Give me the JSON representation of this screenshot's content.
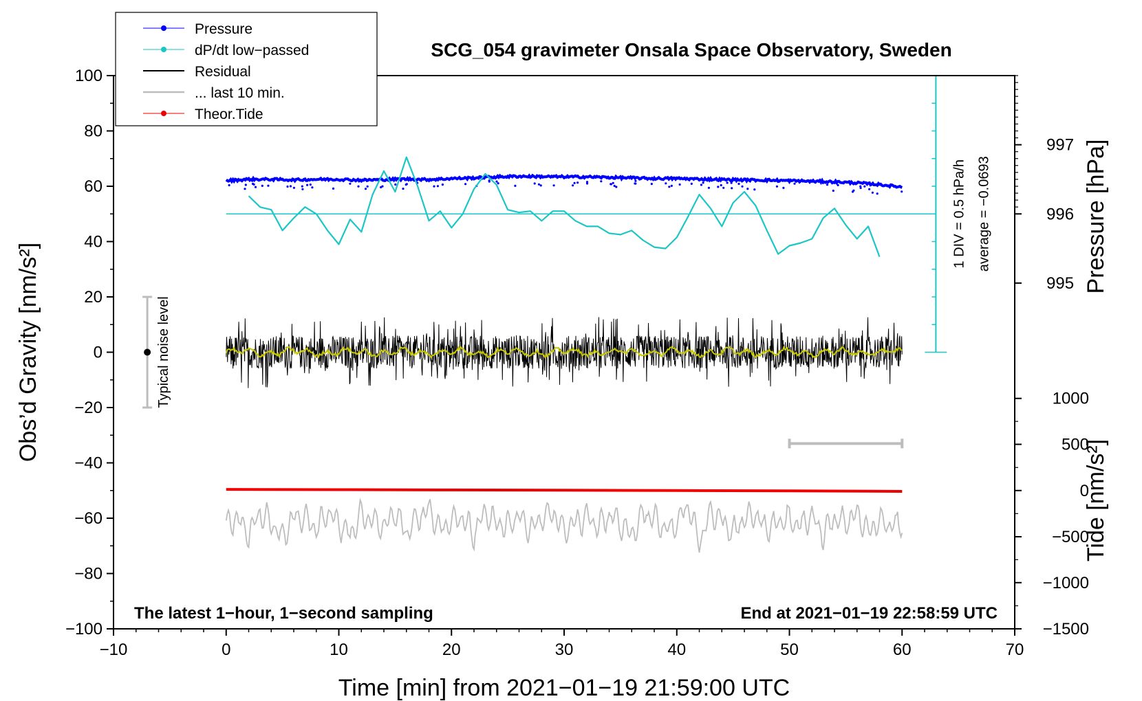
{
  "chart_data": {
    "type": "line",
    "title": "SCG_054 gravimeter Onsala Space Observatory, Sweden",
    "xlabel": "Time [min] from 2021−01−19 21:59:00 UTC",
    "ylabel_left": "Obs’d Gravity [nm/s²]",
    "ylabel_pressure": "Pressure [hPa]",
    "ylabel_tide": "Tide [nm/s²]",
    "xlim": [
      -10,
      70
    ],
    "ylim": [
      -100,
      100
    ],
    "x_ticks": [
      "−10",
      "0",
      "10",
      "20",
      "30",
      "40",
      "50",
      "60",
      "70"
    ],
    "y_ticks": [
      "100",
      "80",
      "60",
      "40",
      "20",
      "0",
      "−20",
      "−40",
      "−60",
      "−80",
      "−100"
    ],
    "pressure_axis": {
      "ticks": [
        "997",
        "996",
        "995"
      ],
      "values": [
        997,
        996,
        995
      ],
      "gravity_equiv": [
        75,
        50,
        25
      ]
    },
    "tide_axis": {
      "ticks": [
        "1000",
        "500",
        "0",
        "−500",
        "−1000",
        "−1500"
      ],
      "values": [
        1000,
        500,
        0,
        -500,
        -1000,
        -1500
      ],
      "gravity_equiv": [
        -16.7,
        -33.3,
        -50,
        -66.7,
        -83.3,
        -100
      ]
    },
    "dpdt_scale": {
      "label": "1 DIV = 0.5 hPa/h",
      "average_label": "average = −0.0693",
      "x": 63,
      "y_range": [
        0,
        100
      ],
      "divisions": 10
    },
    "noise_bar": {
      "label": "Typical noise level",
      "x": -7,
      "y_range": [
        -20,
        20
      ],
      "center": 0
    },
    "last10_bar": {
      "x_range": [
        50,
        60
      ],
      "y": -33
    },
    "pressure_ref_line": {
      "y": 50,
      "x_range": [
        0,
        63
      ]
    },
    "series": [
      {
        "name": "Pressure",
        "color": "#0000ff",
        "x": [
          0,
          2,
          4,
          6,
          8,
          10,
          12,
          14,
          16,
          18,
          20,
          22,
          24,
          26,
          28,
          30,
          32,
          34,
          36,
          38,
          40,
          42,
          44,
          46,
          48,
          50,
          52,
          54,
          56,
          58,
          60
        ],
        "y": [
          62.0,
          62.5,
          62.5,
          62.3,
          62.5,
          62.5,
          62.2,
          62.4,
          62.6,
          62.4,
          62.8,
          63.0,
          63.4,
          63.6,
          63.5,
          63.4,
          63.4,
          63.2,
          63.0,
          62.8,
          62.8,
          62.6,
          62.4,
          62.3,
          62.2,
          62.0,
          61.8,
          61.6,
          61.2,
          60.6,
          59.7
        ]
      },
      {
        "name": "dP/dt low−passed",
        "color": "#1cc6c6",
        "x": [
          2,
          3,
          4,
          5,
          6,
          7,
          8,
          9,
          10,
          11,
          12,
          13,
          14,
          15,
          16,
          17,
          18,
          19,
          20,
          21,
          22,
          23,
          24,
          25,
          26,
          27,
          28,
          29,
          30,
          31,
          32,
          33,
          34,
          35,
          36,
          37,
          38,
          39,
          40,
          41,
          42,
          43,
          44,
          45,
          46,
          47,
          48,
          49,
          50,
          51,
          52,
          53,
          54,
          55,
          56,
          57,
          58
        ],
        "y": [
          56.5,
          52.5,
          51.5,
          44.0,
          48.5,
          52.5,
          50.0,
          44.0,
          39.0,
          48.0,
          43.5,
          57.0,
          65.5,
          58.0,
          70.5,
          60.0,
          47.5,
          51.0,
          45.0,
          50.0,
          59.0,
          64.5,
          60.5,
          51.5,
          50.5,
          51.0,
          47.5,
          51.0,
          51.0,
          47.5,
          45.5,
          45.5,
          43.0,
          42.5,
          44.0,
          40.5,
          38.0,
          37.5,
          41.5,
          49.0,
          57.0,
          52.0,
          45.5,
          54.0,
          58.0,
          53.0,
          44.0,
          35.5,
          38.5,
          39.5,
          41.0,
          48.5,
          52.0,
          46.0,
          41.0,
          45.5,
          34.5
        ]
      },
      {
        "name": "Residual",
        "color": "#000000",
        "x_range": [
          0,
          60
        ],
        "y_mean": 0,
        "y_range": [
          -16,
          16
        ],
        "sampling": "1 second"
      },
      {
        "name": "... last 10 min.",
        "color": "#bdbdbd",
        "x": [
          0,
          1,
          2,
          3,
          4,
          5,
          6,
          7,
          8,
          9,
          10,
          11,
          12,
          13,
          14,
          15,
          16,
          17,
          18,
          19,
          20,
          21,
          22,
          23,
          24,
          25,
          26,
          27,
          28,
          29,
          30,
          31,
          32,
          33,
          34,
          35,
          36,
          37,
          38,
          39,
          40,
          41,
          42,
          43,
          44,
          45,
          46,
          47,
          48,
          49,
          50,
          51,
          52,
          53,
          54,
          55,
          56,
          57,
          58,
          59,
          60
        ],
        "y": [
          -63,
          -60,
          -66,
          -58,
          -62,
          -67,
          -59,
          -60,
          -64,
          -58,
          -62,
          -66,
          -59,
          -61,
          -63,
          -58,
          -65,
          -60,
          -57,
          -64,
          -61,
          -60,
          -66,
          -58,
          -62,
          -63,
          -59,
          -64,
          -60,
          -58,
          -65,
          -61,
          -60,
          -63,
          -59,
          -62,
          -66,
          -58,
          -60,
          -64,
          -62,
          -55,
          -69,
          -58,
          -61,
          -65,
          -60,
          -59,
          -64,
          -61,
          -60,
          -63,
          -59,
          -66,
          -60,
          -62,
          -58,
          -65,
          -61,
          -63,
          -62
        ]
      },
      {
        "name": "Theor.Tide",
        "color": "#ee0000",
        "x": [
          0,
          10,
          20,
          30,
          40,
          50,
          60
        ],
        "y": [
          -49.6,
          -49.7,
          -49.8,
          -49.9,
          -50.0,
          -50.1,
          -50.3
        ]
      }
    ],
    "legend": {
      "position": "top-left",
      "entries": [
        "Pressure",
        "dP/dt low−passed",
        "Residual",
        "... last 10 min.",
        "Theor.Tide"
      ]
    },
    "annotations": {
      "bottom_left": "The latest 1−hour, 1−second sampling",
      "bottom_right": "End at 2021−01−19 22:58:59 UTC"
    }
  }
}
